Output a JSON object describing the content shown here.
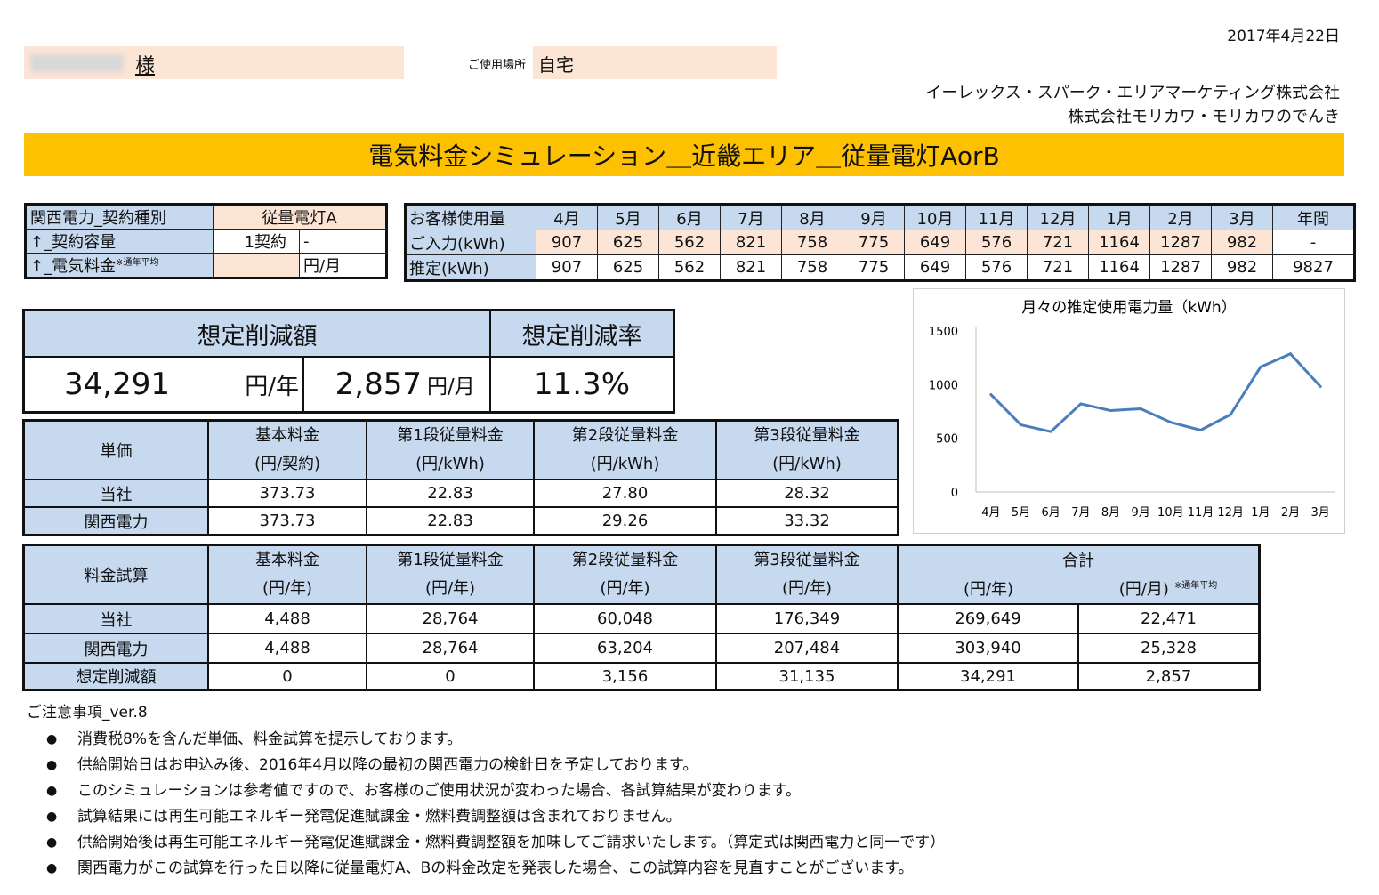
{
  "header": {
    "date": "2017年4月22日",
    "customer_suffix": "様",
    "place_label": "ご使用場所",
    "place_value": "自宅",
    "company1": "イーレックス・スパーク・エリアマーケティング株式会社",
    "company2": "株式会社モリカワ・モリカワのでんき",
    "banner": "電気料金シミュレーション＿近畿エリア＿従量電灯AorB"
  },
  "contract": {
    "row1_label": "関西電力_契約種別",
    "row1_value": "従量電灯A",
    "row2_label": "↑_契約容量",
    "row2_value": "1契約",
    "row2_extra": "-",
    "row3_label": "↑_電気料金",
    "row3_note": "※通年平均",
    "row3_value": "",
    "row3_unit": "円/月"
  },
  "usage": {
    "header_label": "お客様使用量",
    "months": [
      "4月",
      "5月",
      "6月",
      "7月",
      "8月",
      "9月",
      "10月",
      "11月",
      "12月",
      "1月",
      "2月",
      "3月"
    ],
    "annual_label": "年間",
    "input_label": "ご入力(kWh)",
    "input": [
      "907",
      "625",
      "562",
      "821",
      "758",
      "775",
      "649",
      "576",
      "721",
      "1164",
      "1287",
      "982"
    ],
    "input_annual": "-",
    "est_label": "推定(kWh)",
    "est": [
      "907",
      "625",
      "562",
      "821",
      "758",
      "775",
      "649",
      "576",
      "721",
      "1164",
      "1287",
      "982"
    ],
    "est_annual": "9827"
  },
  "savings": {
    "amount_label": "想定削減額",
    "rate_label": "想定削減率",
    "yearly": "34,291",
    "yearly_unit": "円/年",
    "monthly": "2,857",
    "monthly_unit": "円/月",
    "rate": "11.3%"
  },
  "unit_price": {
    "corner": "単価",
    "headers": [
      {
        "title": "基本料金",
        "unit": "(円/契約)"
      },
      {
        "title": "第1段従量料金",
        "unit": "(円/kWh)"
      },
      {
        "title": "第2段従量料金",
        "unit": "(円/kWh)"
      },
      {
        "title": "第3段従量料金",
        "unit": "(円/kWh)"
      }
    ],
    "rows": [
      {
        "label": "当社",
        "values": [
          "373.73",
          "22.83",
          "27.80",
          "28.32"
        ]
      },
      {
        "label": "関西電力",
        "values": [
          "373.73",
          "22.83",
          "29.26",
          "33.32"
        ]
      }
    ]
  },
  "cost": {
    "corner": "料金試算",
    "headers": [
      {
        "title": "基本料金",
        "unit": "(円/年)"
      },
      {
        "title": "第1段従量料金",
        "unit": "(円/年)"
      },
      {
        "title": "第2段従量料金",
        "unit": "(円/年)"
      },
      {
        "title": "第3段従量料金",
        "unit": "(円/年)"
      }
    ],
    "total_title": "合計",
    "total_unit_year": "(円/年)",
    "total_unit_month": "(円/月)",
    "total_note": "※通年平均",
    "rows": [
      {
        "label": "当社",
        "values": [
          "4,488",
          "28,764",
          "60,048",
          "176,349",
          "269,649",
          "22,471"
        ]
      },
      {
        "label": "関西電力",
        "values": [
          "4,488",
          "28,764",
          "63,204",
          "207,484",
          "303,940",
          "25,328"
        ]
      },
      {
        "label": "想定削減額",
        "values": [
          "0",
          "0",
          "3,156",
          "31,135",
          "34,291",
          "2,857"
        ]
      }
    ]
  },
  "chart_data": {
    "type": "line",
    "title": "月々の推定使用電力量（kWh）",
    "categories": [
      "4月",
      "5月",
      "6月",
      "7月",
      "8月",
      "9月",
      "10月",
      "11月",
      "12月",
      "1月",
      "2月",
      "3月"
    ],
    "values": [
      907,
      625,
      562,
      821,
      758,
      775,
      649,
      576,
      721,
      1164,
      1287,
      982
    ],
    "ylim": [
      0,
      1500
    ],
    "yticks": [
      0,
      500,
      1000,
      1500
    ],
    "grid": false,
    "line_color": "#4a7ebb"
  },
  "notes": {
    "title": "ご注意事項_ver.8",
    "items": [
      "消費税8%を含んだ単価、料金試算を提示しております。",
      "供給開始日はお申込み後、2016年4月以降の最初の関西電力の検針日を予定しております。",
      "このシミュレーションは参考値ですので、お客様のご使用状況が変わった場合、各試算結果が変わります。",
      "試算結果には再生可能エネルギー発電促進賦課金・燃料費調整額は含まれておりません。",
      "供給開始後は再生可能エネルギー発電促進賦課金・燃料費調整額を加味してご請求いたします。（算定式は関西電力と同一です）",
      "関西電力がこの試算を行った日以降に従量電灯A、Bの料金改定を発表した場合、この試算内容を見直すことがございます。"
    ]
  }
}
